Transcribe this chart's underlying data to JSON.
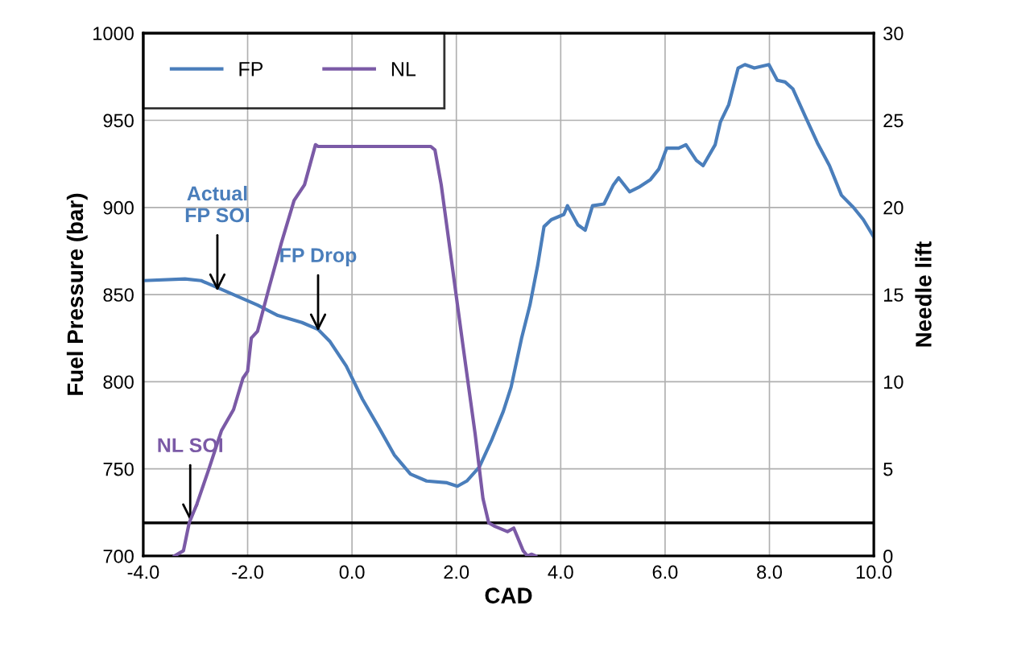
{
  "chart_data": {
    "type": "line",
    "xlabel": "CAD",
    "ylabel": "Fuel Pressure (bar)",
    "y2label": "Needle lift",
    "series": [
      {
        "name": "FP",
        "color": "#4a7ebb",
        "x": [
          -4.0,
          -3.2,
          -2.89,
          -2.58,
          -2.27,
          -1.81,
          -1.42,
          -0.96,
          -0.65,
          -0.42,
          -0.11,
          0.2,
          0.51,
          0.81,
          1.12,
          1.43,
          1.82,
          2.02,
          2.2,
          2.44,
          2.67,
          2.9,
          3.05,
          3.25,
          3.41,
          3.56,
          3.68,
          3.82,
          4.06,
          4.13,
          4.33,
          4.47,
          4.61,
          4.83,
          5.01,
          5.11,
          5.32,
          5.52,
          5.72,
          5.88,
          6.03,
          6.26,
          6.4,
          6.6,
          6.73,
          6.96,
          7.06,
          7.22,
          7.4,
          7.53,
          7.71,
          7.99,
          8.15,
          8.3,
          8.45,
          8.69,
          8.92,
          9.15,
          9.38,
          9.61,
          9.8,
          10.0
        ],
        "values": [
          858,
          859,
          858,
          854,
          850,
          844,
          838,
          834,
          830,
          823,
          809,
          790,
          774,
          758,
          747,
          743,
          742,
          740,
          743,
          751,
          766,
          783,
          797,
          825,
          844,
          867,
          889,
          893,
          896,
          901,
          890,
          887,
          901,
          902,
          913,
          917,
          909,
          912,
          916,
          922,
          934,
          934,
          936,
          927,
          924,
          936,
          949,
          959,
          980,
          982,
          980,
          982,
          973,
          972,
          968,
          952,
          937,
          924,
          907,
          900,
          893,
          883
        ]
      },
      {
        "name": "NL",
        "color": "#7b5aa6",
        "axis": "y2",
        "x": [
          -3.4,
          -3.23,
          -3.12,
          -2.97,
          -2.73,
          -2.5,
          -2.27,
          -2.09,
          -2.0,
          -1.93,
          -1.81,
          -1.58,
          -1.35,
          -1.11,
          -0.91,
          -0.7,
          -0.65,
          1.51,
          1.59,
          1.71,
          1.9,
          2.13,
          2.36,
          2.51,
          2.62,
          2.74,
          2.98,
          3.1,
          3.28,
          3.36,
          3.44,
          3.52
        ],
        "values": [
          0,
          0.3,
          1.9,
          3.0,
          5.1,
          7.2,
          8.4,
          10.2,
          10.6,
          12.5,
          12.9,
          15.5,
          18.0,
          20.4,
          21.3,
          23.6,
          23.5,
          23.5,
          23.3,
          21.3,
          17.1,
          12.0,
          7.0,
          3.3,
          1.9,
          1.7,
          1.4,
          1.6,
          0.3,
          0.0,
          0.1,
          0
        ]
      }
    ],
    "xlim": [
      -4.0,
      10.0
    ],
    "xticks": [
      {
        "value": -4,
        "label": "-4.0"
      },
      {
        "value": -2,
        "label": "-2.0"
      },
      {
        "value": 0,
        "label": "0.0"
      },
      {
        "value": 2,
        "label": "2.0"
      },
      {
        "value": 4,
        "label": "4.0"
      },
      {
        "value": 6,
        "label": "6.0"
      },
      {
        "value": 8,
        "label": "8.0"
      },
      {
        "value": 10,
        "label": "10.0"
      }
    ],
    "ylim": [
      700,
      1000
    ],
    "yticks": [
      700,
      750,
      800,
      850,
      900,
      950,
      1000
    ],
    "y2lim": [
      0,
      30
    ],
    "y2ticks": [
      0,
      5,
      10,
      15,
      20,
      25,
      30
    ],
    "ref_lines": [
      {
        "axis": "y2",
        "value": 1.9,
        "color": "#000000",
        "line_style": "solid"
      }
    ],
    "annotations": [
      {
        "text": "Actual\nFP SOI",
        "x": -2.58,
        "y": 852
      },
      {
        "text": "FP Drop",
        "x": -0.65,
        "y": 829
      },
      {
        "text": "NL SOI",
        "x": -3.1,
        "y": 720
      }
    ],
    "grid": true,
    "legend": "top left",
    "marker": "none",
    "line_style": "solid"
  }
}
